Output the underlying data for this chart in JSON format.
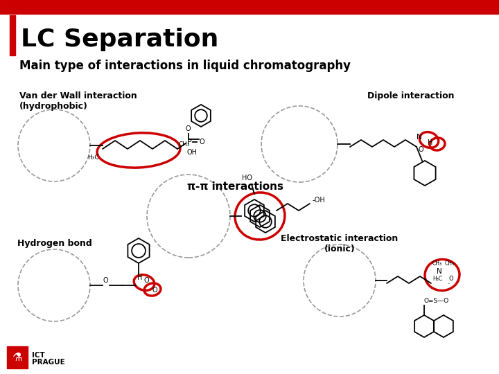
{
  "title": "LC Separation",
  "subtitle": "Main type of interactions in liquid chromatography",
  "red_color": "#cc0000",
  "bg_color": "#ffffff",
  "text_color": "#000000",
  "gray_color": "#999999",
  "labels": {
    "van_der_wall": "Van der Wall interaction\n(hydrophobic)",
    "dipole": "Dipole interaction",
    "hydrogen": "Hydrogen bond",
    "pi_pi": "π-π interactions",
    "electrostatic": "Electrostatic interaction\n(ionic)"
  },
  "ict_text": "ICT\nPRAGUE"
}
